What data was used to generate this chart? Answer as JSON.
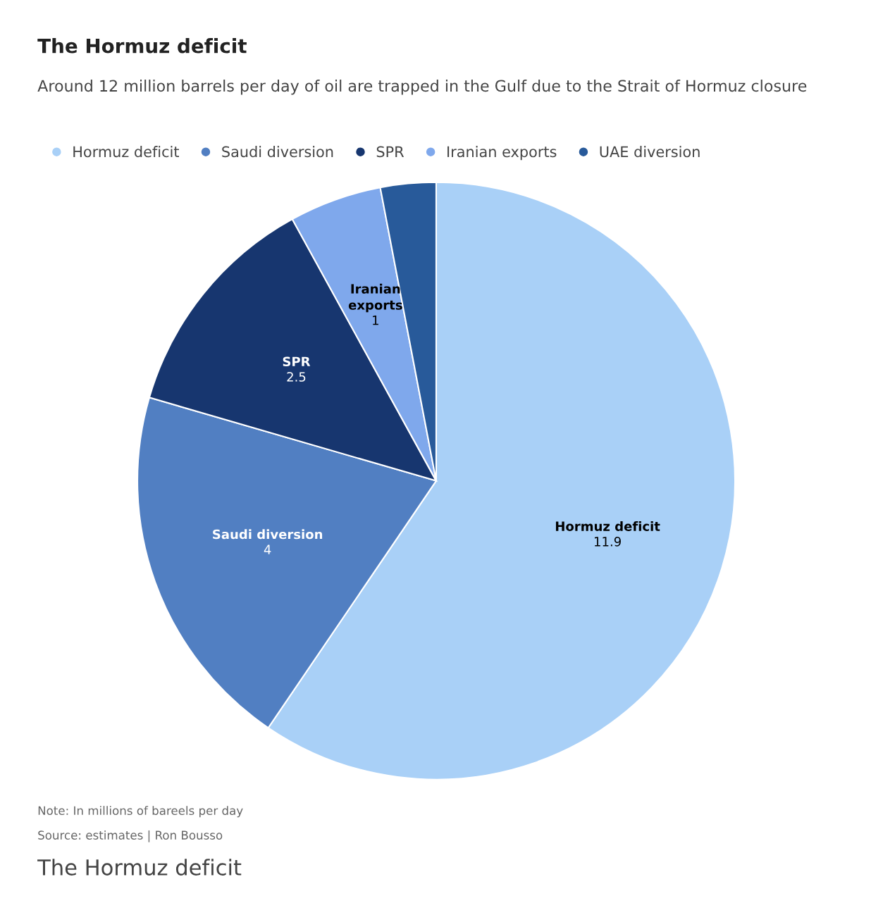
{
  "chart_data": {
    "type": "pie",
    "title": "The Hormuz deficit",
    "subtitle": "Around 12 million barrels per day of oil are trapped in the Gulf due to the Strait of Hormuz closure",
    "categories": [
      "Hormuz deficit",
      "Saudi diversion",
      "SPR",
      "Iranian exports",
      "UAE diversion"
    ],
    "values": [
      11.9,
      4,
      2.5,
      1,
      0.6
    ],
    "colors": [
      "#a9d0f7",
      "#517fc2",
      "#17366f",
      "#7fa8ec",
      "#285a9a"
    ],
    "value_labels": [
      "11.9",
      "4",
      "2.5",
      "1",
      null
    ],
    "legend": "top left",
    "annotations": [
      "Note: In millions of bareels per day",
      "Source: estimates | Ron Bousso",
      "The Hormuz deficit"
    ]
  }
}
